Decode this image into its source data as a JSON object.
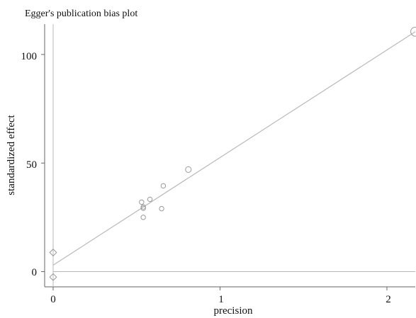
{
  "chart_data": {
    "type": "scatter",
    "title": "Egger's publication bias plot",
    "xlabel": "precision",
    "ylabel": "standardized effect",
    "xlim": [
      0,
      2.17
    ],
    "ylim": [
      -7,
      114
    ],
    "x_ticks": [
      0,
      1,
      2
    ],
    "x_tick_labels": [
      "0",
      "1",
      "2"
    ],
    "y_ticks": [
      0,
      50,
      100
    ],
    "y_tick_labels": [
      "0",
      "50",
      "100"
    ],
    "grid": false,
    "legend": "none",
    "colors": {
      "marker": "#9a9a9a",
      "line": "#b8b8b8",
      "axis": "#666666",
      "text": "#111111"
    },
    "studies": [
      {
        "x": 0.53,
        "y": 32.0,
        "weight": 1.0
      },
      {
        "x": 0.54,
        "y": 29.8,
        "weight": 1.0
      },
      {
        "x": 0.54,
        "y": 29.2,
        "weight": 1.0
      },
      {
        "x": 0.54,
        "y": 25.0,
        "weight": 1.0
      },
      {
        "x": 0.58,
        "y": 33.3,
        "weight": 1.0
      },
      {
        "x": 0.66,
        "y": 39.5,
        "weight": 1.0
      },
      {
        "x": 0.65,
        "y": 29.0,
        "weight": 1.0
      },
      {
        "x": 0.81,
        "y": 47.0,
        "weight": 1.6
      },
      {
        "x": 2.17,
        "y": 110.5,
        "weight": 4.0
      }
    ],
    "regression_line": {
      "x": [
        0,
        2.17
      ],
      "y": [
        3.0,
        110.5
      ]
    },
    "intercept_ci": {
      "x": 0,
      "lower": -2.5,
      "upper": 8.8
    },
    "zero_line": {
      "y": 0
    },
    "vertical_ref": {
      "x": 0,
      "y_from": -7,
      "y_to": 114
    }
  }
}
